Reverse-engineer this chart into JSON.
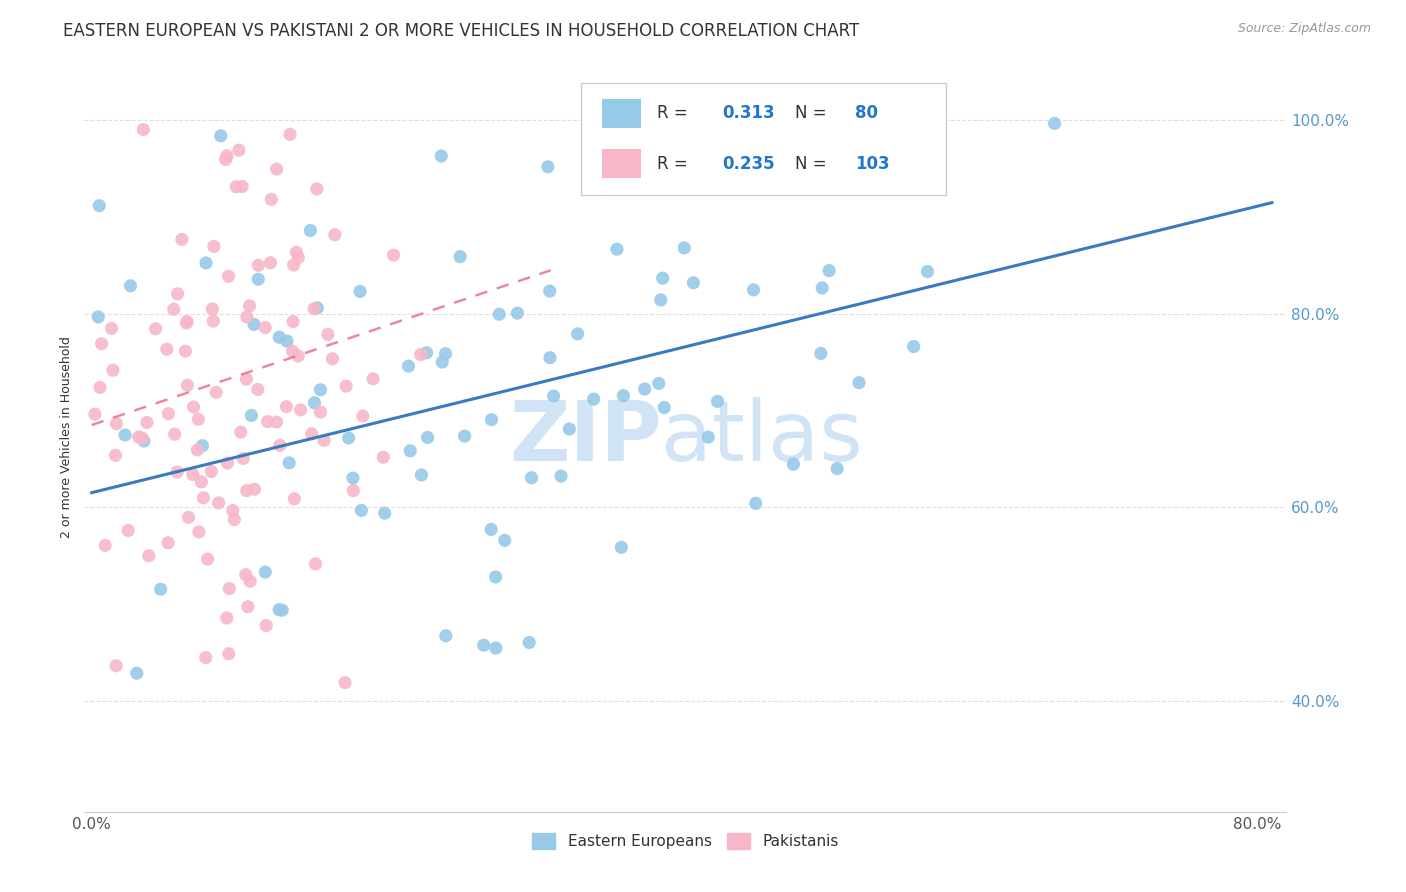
{
  "title": "EASTERN EUROPEAN VS PAKISTANI 2 OR MORE VEHICLES IN HOUSEHOLD CORRELATION CHART",
  "source": "Source: ZipAtlas.com",
  "ylabel": "2 or more Vehicles in Household",
  "xlim": [
    -0.005,
    0.82
  ],
  "ylim": [
    0.285,
    1.06
  ],
  "xtick_positions": [
    0.0,
    0.8
  ],
  "xticklabels": [
    "0.0%",
    "80.0%"
  ],
  "ytick_positions": [
    0.4,
    0.6,
    0.8,
    1.0
  ],
  "yticklabels": [
    "40.0%",
    "60.0%",
    "80.0%",
    "100.0%"
  ],
  "legend_labels": [
    "Eastern Europeans",
    "Pakistanis"
  ],
  "legend_r_vals": [
    "0.313",
    "0.235"
  ],
  "legend_n_vals": [
    "80",
    "103"
  ],
  "blue_color": "#97c9e8",
  "pink_color": "#f7b7c8",
  "blue_line_color": "#3a7bbf",
  "pink_line_color": "#e8748a",
  "watermark_color": "#d0e4f5",
  "blue_trend_x": [
    0.0,
    0.81
  ],
  "blue_trend_y": [
    0.615,
    0.915
  ],
  "pink_trend_x": [
    0.0,
    0.315
  ],
  "pink_trend_y": [
    0.685,
    0.845
  ],
  "background_color": "#ffffff",
  "grid_color": "#e0e0e0",
  "title_fontsize": 12,
  "axis_label_fontsize": 9,
  "tick_fontsize": 11,
  "legend_fontsize": 12,
  "watermark_fontsize": 60,
  "source_fontsize": 9
}
